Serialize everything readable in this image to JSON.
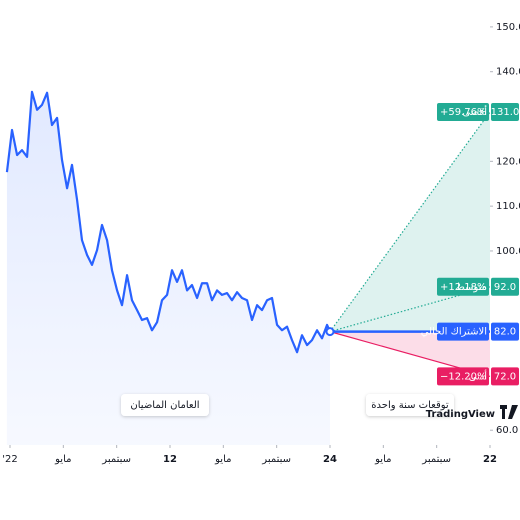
{
  "chart_data": {
    "type": "line",
    "color": "#2962ff",
    "x": [
      -0.23,
      0.15,
      0.53,
      0.9,
      1.28,
      1.65,
      2.03,
      2.4,
      2.78,
      3.15,
      3.53,
      3.9,
      4.28,
      4.65,
      5.03,
      5.4,
      5.78,
      6.15,
      6.53,
      6.9,
      7.28,
      7.65,
      8.03,
      8.4,
      8.78,
      9.15,
      9.53,
      9.9,
      10.28,
      10.65,
      11.03,
      11.4,
      11.78,
      12.15,
      12.53,
      12.9,
      13.28,
      13.65,
      14.03,
      14.4,
      14.78,
      15.15,
      15.53,
      15.9,
      16.28,
      16.65,
      17.03,
      17.4,
      17.78,
      18.15,
      18.53,
      18.9,
      19.28,
      19.65,
      20.03,
      20.4,
      20.78,
      21.15,
      21.53,
      21.9,
      22.28,
      22.65,
      23.03,
      23.4,
      23.78,
      24.0
    ],
    "values": [
      117.6,
      127.0,
      121.4,
      122.5,
      121.0,
      135.5,
      131.5,
      132.6,
      135.3,
      128.1,
      129.7,
      120.3,
      114.0,
      119.2,
      111.4,
      102.4,
      99.1,
      96.9,
      100.2,
      105.8,
      102.4,
      95.7,
      91.2,
      87.9,
      94.6,
      89.0,
      86.8,
      84.6,
      85.0,
      82.3,
      84.1,
      89.0,
      90.2,
      95.7,
      93.1,
      95.7,
      91.2,
      92.4,
      89.5,
      92.8,
      92.8,
      89.0,
      91.2,
      90.2,
      90.6,
      89.0,
      90.8,
      89.5,
      89.0,
      84.6,
      87.9,
      86.8,
      89.0,
      89.5,
      83.5,
      82.3,
      83.1,
      80.1,
      77.4,
      81.2,
      79.0,
      80.1,
      82.3,
      80.5,
      83.5,
      82.0
    ],
    "current": {
      "label": "الاشتراك الحالي",
      "value": 82,
      "value_label": "82.0",
      "color": "#2962ff"
    },
    "forecast": [
      {
        "label": "أقصى",
        "change_label": "+59.76%",
        "value": 131,
        "value_label": "131.0",
        "color": "#22ab94"
      },
      {
        "label": "متوسط",
        "change_label": "+12.18%",
        "value": 92,
        "value_label": "92.0",
        "color": "#22ab94"
      },
      {
        "label": "أدنى",
        "change_label": "−12.20%",
        "value": 72,
        "value_label": "72.0",
        "color": "#e91e63"
      }
    ],
    "annotations": [
      "العامان الماضيان",
      "توقعات سنة واحدة"
    ],
    "brand": "TradingView",
    "xlim": [
      -0.75,
      36
    ],
    "ylim": [
      56.7,
      156
    ],
    "xticks": [
      {
        "value": 0,
        "label": "'22"
      },
      {
        "value": 4,
        "label": "مايو"
      },
      {
        "value": 8,
        "label": "سبتمبر"
      },
      12,
      {
        "value": 16,
        "label": "مايو"
      },
      {
        "value": 20,
        "label": "سبتمبر"
      },
      24,
      {
        "value": 28,
        "label": "مايو"
      },
      {
        "value": 32,
        "label": "سبتمبر"
      },
      {
        "value": 36,
        "label": "22"
      }
    ],
    "yticks": [
      {
        "value": 150,
        "label": "150.0"
      },
      {
        "value": 140,
        "label": "140.0"
      },
      {
        "value": 120,
        "label": "120.0"
      },
      {
        "value": 110,
        "label": "110.0"
      },
      {
        "value": 100,
        "label": "100.0"
      },
      {
        "value": 60,
        "label": "60.0"
      }
    ]
  }
}
